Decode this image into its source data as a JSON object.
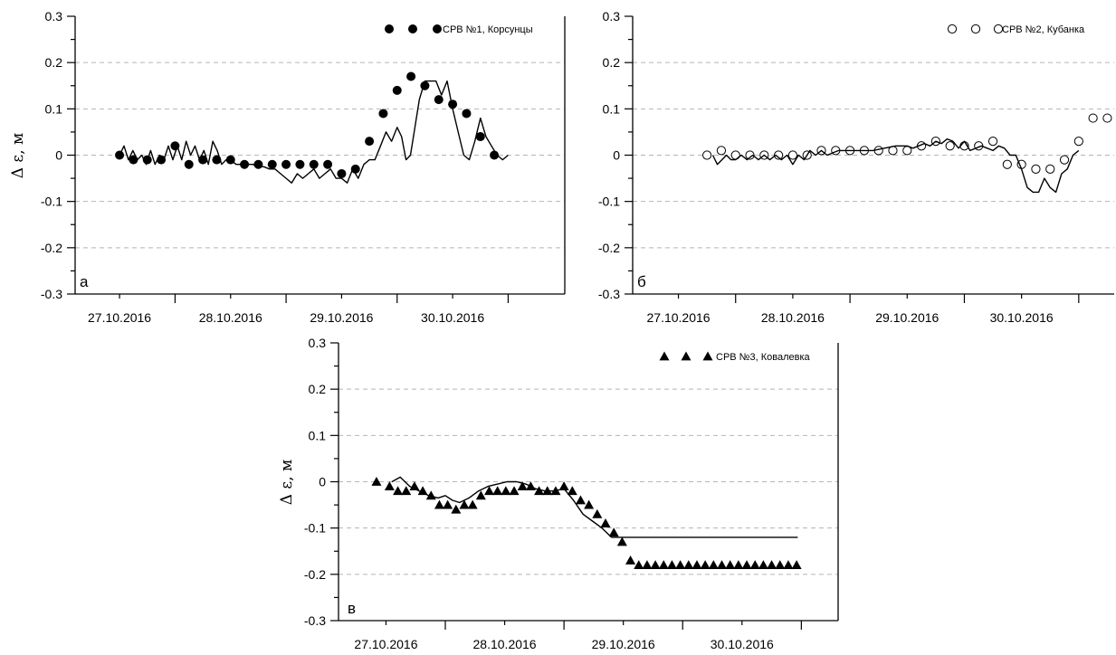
{
  "ylabel": "Δ ε, м",
  "chart_data": [
    {
      "type": "scatter",
      "panel_letter": "а",
      "legend_label": "СРВ №1, Корсунцы",
      "marker": "filled-circle",
      "ylim": [
        -0.3,
        0.3
      ],
      "xlim": [
        27.1,
        31.51
      ],
      "y_ticks": [
        "0.3",
        "0.2",
        "0.1",
        "0",
        "-0.1",
        "-0.2",
        "-0.3"
      ],
      "x_ticks": [
        "27.10.2016",
        "28.10.2016",
        "29.10.2016",
        "30.10.2016"
      ],
      "grid": true,
      "legend_position": "top-right",
      "series": [
        {
          "kind": "points",
          "x": [
            27.5,
            27.625,
            27.75,
            27.875,
            28.0,
            28.125,
            28.25,
            28.375,
            28.5,
            28.625,
            28.75,
            28.875,
            29.0,
            29.125,
            29.25,
            29.375,
            29.5,
            29.625,
            29.75,
            29.875,
            30.0,
            30.125,
            30.25,
            30.375,
            30.5,
            30.625,
            30.75,
            30.875,
            31.0,
            31.125,
            31.25,
            31.375,
            31.5
          ],
          "y": [
            0.0,
            -0.01,
            -0.01,
            -0.01,
            0.02,
            -0.02,
            -0.01,
            -0.01,
            -0.01,
            -0.02,
            -0.02,
            -0.02,
            -0.02,
            -0.02,
            -0.02,
            -0.02,
            -0.04,
            -0.03,
            0.03,
            0.09,
            0.14,
            0.17,
            0.15,
            0.12,
            0.11,
            0.09,
            0.04,
            0.0,
            null,
            null,
            null,
            null,
            null
          ]
        },
        {
          "kind": "line",
          "x": [
            27.5,
            27.54,
            27.58,
            27.62,
            27.66,
            27.7,
            27.74,
            27.78,
            27.82,
            27.86,
            27.9,
            27.94,
            27.98,
            28.02,
            28.06,
            28.1,
            28.14,
            28.18,
            28.22,
            28.26,
            28.3,
            28.34,
            28.38,
            28.42,
            28.46,
            28.5,
            28.55,
            28.6,
            28.65,
            28.7,
            28.75,
            28.8,
            28.85,
            28.9,
            28.95,
            29.0,
            29.05,
            29.1,
            29.15,
            29.2,
            29.25,
            29.3,
            29.35,
            29.4,
            29.45,
            29.5,
            29.55,
            29.6,
            29.65,
            29.7,
            29.75,
            29.8,
            29.85,
            29.9,
            29.95,
            30.0,
            30.04,
            30.08,
            30.12,
            30.16,
            30.2,
            30.25,
            30.3,
            30.35,
            30.4,
            30.45,
            30.5,
            30.55,
            30.6,
            30.65,
            30.7,
            30.75,
            30.8,
            30.85,
            30.9,
            30.95,
            31.0
          ],
          "y": [
            0.0,
            0.02,
            -0.01,
            0.01,
            -0.01,
            0.0,
            -0.02,
            0.01,
            -0.02,
            0.0,
            -0.01,
            0.02,
            -0.01,
            0.02,
            -0.01,
            0.03,
            0.0,
            0.02,
            -0.01,
            0.01,
            -0.02,
            0.03,
            0.01,
            -0.02,
            -0.01,
            -0.01,
            -0.02,
            -0.02,
            -0.02,
            -0.02,
            -0.025,
            -0.025,
            -0.03,
            -0.03,
            -0.04,
            -0.05,
            -0.06,
            -0.04,
            -0.05,
            -0.04,
            -0.03,
            -0.05,
            -0.04,
            -0.03,
            -0.05,
            -0.05,
            -0.06,
            -0.03,
            -0.05,
            -0.02,
            -0.01,
            -0.01,
            0.02,
            0.05,
            0.03,
            0.06,
            0.04,
            -0.01,
            0.0,
            0.06,
            0.12,
            0.16,
            0.16,
            0.16,
            0.13,
            0.16,
            0.1,
            0.05,
            0.0,
            -0.01,
            0.03,
            0.08,
            0.04,
            0.02,
            0.0,
            -0.01,
            0.0
          ]
        }
      ]
    },
    {
      "type": "scatter",
      "panel_letter": "б",
      "legend_label": "СРВ №2, Кубанка",
      "marker": "open-circle",
      "ylim": [
        -0.3,
        0.3
      ],
      "xlim": [
        27.1,
        31.31
      ],
      "y_ticks": [
        "0.3",
        "0.2",
        "0.1",
        "0",
        "-0.1",
        "-0.2",
        "-0.3"
      ],
      "x_ticks": [
        "27.10.2016",
        "28.10.2016",
        "29.10.2016",
        "30.10.2016"
      ],
      "grid": true,
      "legend_position": "top-right",
      "series": [
        {
          "kind": "points",
          "x": [
            27.75,
            27.875,
            28.0,
            28.125,
            28.25,
            28.375,
            28.5,
            28.625,
            28.75,
            28.875,
            29.0,
            29.125,
            29.25,
            29.375,
            29.5,
            29.625,
            29.75,
            29.875,
            30.0,
            30.125,
            30.25,
            30.375,
            30.5,
            30.625,
            30.75,
            30.875,
            31.0,
            31.125,
            31.25
          ],
          "y": [
            0.0,
            0.01,
            0.0,
            0.0,
            0.0,
            0.0,
            0.0,
            0.0,
            0.01,
            0.01,
            0.01,
            0.01,
            0.01,
            0.01,
            0.01,
            0.02,
            0.03,
            0.02,
            0.02,
            0.02,
            0.03,
            -0.02,
            -0.02,
            -0.03,
            -0.03,
            -0.01,
            0.03,
            0.08,
            0.08
          ]
        },
        {
          "kind": "line",
          "x": [
            27.8,
            27.84,
            27.88,
            27.92,
            27.96,
            28.0,
            28.05,
            28.1,
            28.15,
            28.2,
            28.25,
            28.3,
            28.35,
            28.4,
            28.45,
            28.5,
            28.55,
            28.6,
            28.65,
            28.7,
            28.75,
            28.8,
            28.9,
            29.0,
            29.1,
            29.2,
            29.3,
            29.4,
            29.5,
            29.55,
            29.6,
            29.65,
            29.7,
            29.75,
            29.8,
            29.85,
            29.9,
            29.95,
            30.0,
            30.05,
            30.1,
            30.15,
            30.2,
            30.25,
            30.3,
            30.35,
            30.4,
            30.45,
            30.5,
            30.55,
            30.6,
            30.65,
            30.7,
            30.75,
            30.8,
            30.85,
            30.9,
            30.95,
            31.0
          ],
          "y": [
            0.0,
            -0.02,
            -0.01,
            0.0,
            -0.01,
            -0.01,
            0.0,
            -0.01,
            0.0,
            -0.01,
            0.0,
            -0.01,
            0.0,
            -0.01,
            0.0,
            -0.02,
            0.0,
            -0.01,
            0.01,
            0.0,
            0.01,
            0.0,
            0.01,
            0.01,
            0.01,
            0.01,
            0.015,
            0.02,
            0.02,
            0.015,
            0.02,
            0.025,
            0.02,
            0.03,
            0.025,
            0.035,
            0.03,
            0.015,
            0.03,
            0.01,
            0.015,
            0.02,
            0.015,
            0.01,
            0.02,
            0.015,
            0.0,
            0.0,
            -0.03,
            -0.07,
            -0.08,
            -0.08,
            -0.05,
            -0.07,
            -0.08,
            -0.04,
            -0.03,
            0.0,
            0.01
          ]
        }
      ]
    },
    {
      "type": "scatter",
      "panel_letter": "в",
      "legend_label": "СРВ №3, Ковалевка",
      "marker": "filled-triangle",
      "ylim": [
        -0.3,
        0.3
      ],
      "xlim": [
        27.1,
        31.31
      ],
      "y_ticks": [
        "0.3",
        "0.2",
        "0.1",
        "0",
        "-0.1",
        "-0.2",
        "-0.3"
      ],
      "x_ticks": [
        "27.10.2016",
        "28.10.2016",
        "29.10.2016",
        "30.10.2016"
      ],
      "grid": true,
      "legend_position": "top-right",
      "series": [
        {
          "kind": "points",
          "x": [
            27.42,
            27.53,
            27.6,
            27.67,
            27.74,
            27.81,
            27.88,
            27.95,
            28.02,
            28.09,
            28.16,
            28.23,
            28.3,
            28.37,
            28.44,
            28.51,
            28.58,
            28.65,
            28.72,
            28.79,
            28.86,
            28.93,
            29.0,
            29.07,
            29.14,
            29.21,
            29.28,
            29.35,
            29.42,
            29.49,
            29.56,
            29.63,
            29.7,
            29.77,
            29.84,
            29.91,
            29.98,
            30.05,
            30.12,
            30.19,
            30.26,
            30.33,
            30.4,
            30.47,
            30.54,
            30.61,
            30.68,
            30.75,
            30.82,
            30.89,
            30.96
          ],
          "y": [
            0.0,
            -0.01,
            -0.02,
            -0.02,
            -0.01,
            -0.02,
            -0.03,
            -0.05,
            -0.05,
            -0.06,
            -0.05,
            -0.05,
            -0.03,
            -0.02,
            -0.02,
            -0.02,
            -0.02,
            -0.01,
            -0.01,
            -0.02,
            -0.02,
            -0.02,
            -0.01,
            -0.02,
            -0.04,
            -0.05,
            -0.07,
            -0.09,
            -0.11,
            -0.13,
            -0.17,
            -0.18,
            -0.18,
            -0.18,
            -0.18,
            -0.18,
            -0.18,
            -0.18,
            -0.18,
            -0.18,
            -0.18,
            -0.18,
            -0.18,
            -0.18,
            -0.18,
            -0.18,
            -0.18,
            -0.18,
            -0.18,
            -0.18,
            -0.18
          ]
        },
        {
          "kind": "line",
          "x": [
            27.55,
            27.62,
            27.7,
            27.78,
            27.86,
            27.94,
            28.0,
            28.06,
            28.12,
            28.2,
            28.28,
            28.36,
            28.44,
            28.52,
            28.6,
            28.68,
            28.76,
            28.84,
            28.92,
            29.0,
            29.08,
            29.16,
            29.24,
            29.32,
            29.4,
            29.48,
            29.56,
            30.97
          ],
          "y": [
            0.0,
            0.01,
            -0.01,
            -0.02,
            -0.03,
            -0.035,
            -0.03,
            -0.04,
            -0.045,
            -0.035,
            -0.02,
            -0.01,
            -0.005,
            0.0,
            0.0,
            -0.005,
            -0.015,
            -0.02,
            -0.02,
            -0.015,
            -0.04,
            -0.07,
            -0.085,
            -0.1,
            -0.12,
            -0.12,
            -0.12,
            -0.12
          ]
        }
      ]
    }
  ]
}
